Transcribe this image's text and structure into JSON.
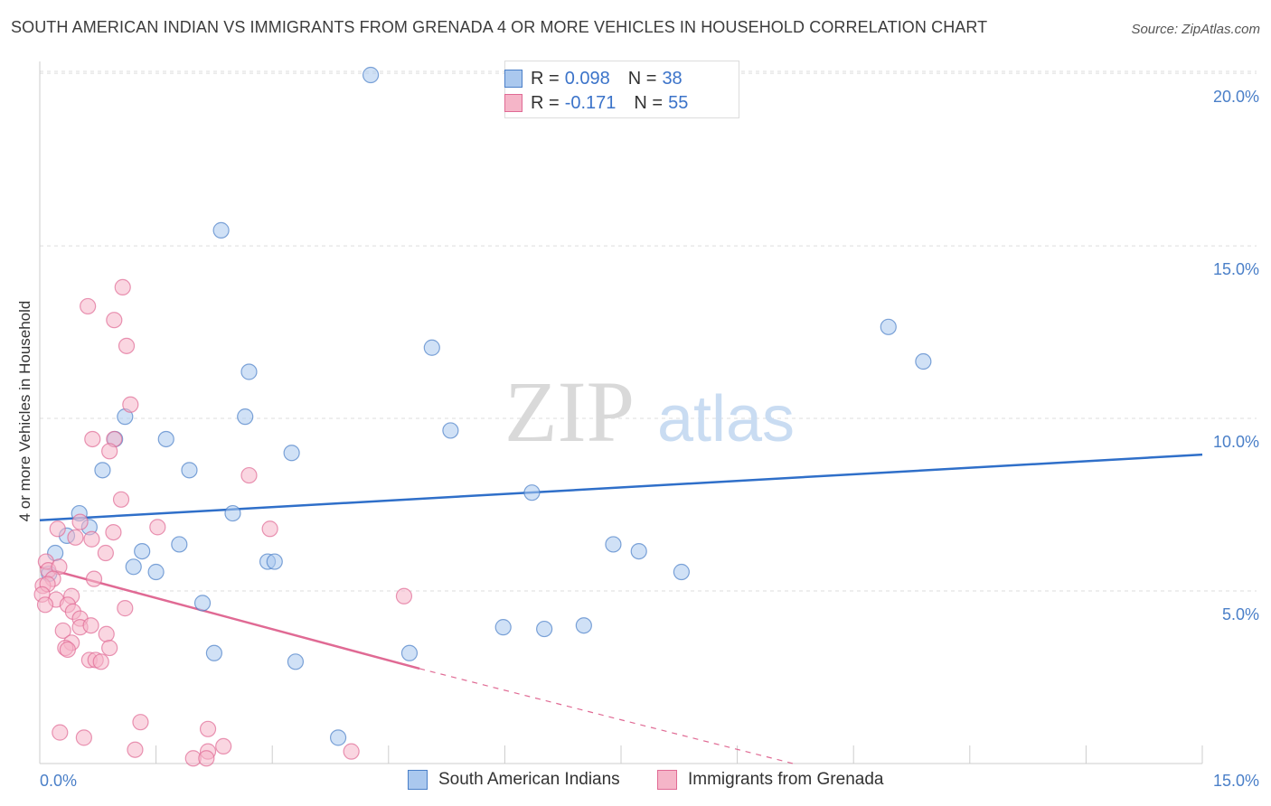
{
  "title": "SOUTH AMERICAN INDIAN VS IMMIGRANTS FROM GRENADA 4 OR MORE VEHICLES IN HOUSEHOLD CORRELATION CHART",
  "source": "Source: ZipAtlas.com",
  "watermark": {
    "zip": "ZIP",
    "atlas": "atlas"
  },
  "legend": {
    "rows": [
      {
        "r_label": "R =",
        "r_value": "0.098",
        "n_label": "N =",
        "n_value": "38"
      },
      {
        "r_label": "R =",
        "r_value": "-0.171",
        "n_label": "N =",
        "n_value": "55"
      }
    ]
  },
  "bottom_legend": [
    "South American Indians",
    "Immigrants from Grenada"
  ],
  "chart_data": {
    "type": "scatter",
    "title": "SOUTH AMERICAN INDIAN VS IMMIGRANTS FROM GRENADA 4 OR MORE VEHICLES IN HOUSEHOLD CORRELATION CHART",
    "xlabel": "",
    "ylabel": "4 or more Vehicles in Household",
    "xlim": [
      0,
      15
    ],
    "ylim": [
      0,
      20.5
    ],
    "x_tick_labels": [
      "0.0%",
      "15.0%"
    ],
    "y_ticks": [
      5,
      10,
      15,
      20
    ],
    "y_tick_labels": [
      "5.0%",
      "10.0%",
      "15.0%",
      "20.0%"
    ],
    "colors": {
      "blue": "#4a7fc8",
      "blue_fill": "#aac8ee",
      "pink": "#e06a94",
      "pink_fill": "#f5b5c8",
      "axis_text": "#4a7fc8"
    },
    "series": [
      {
        "name": "South American Indians",
        "color": "#aac8ee",
        "stroke": "#4a7fc8",
        "points": [
          [
            4.27,
            19.95
          ],
          [
            2.34,
            15.45
          ],
          [
            2.7,
            11.35
          ],
          [
            5.06,
            12.05
          ],
          [
            10.95,
            12.65
          ],
          [
            11.4,
            11.65
          ],
          [
            2.65,
            10.05
          ],
          [
            1.1,
            10.05
          ],
          [
            5.3,
            9.65
          ],
          [
            3.25,
            9.0
          ],
          [
            1.63,
            9.4
          ],
          [
            0.97,
            9.4
          ],
          [
            0.81,
            8.5
          ],
          [
            1.93,
            8.5
          ],
          [
            6.35,
            7.85
          ],
          [
            2.49,
            7.25
          ],
          [
            0.51,
            7.25
          ],
          [
            0.64,
            6.85
          ],
          [
            0.35,
            6.6
          ],
          [
            1.8,
            6.35
          ],
          [
            0.2,
            6.1
          ],
          [
            1.32,
            6.15
          ],
          [
            7.4,
            6.35
          ],
          [
            7.73,
            6.15
          ],
          [
            2.94,
            5.85
          ],
          [
            3.03,
            5.85
          ],
          [
            1.21,
            5.7
          ],
          [
            1.5,
            5.55
          ],
          [
            8.28,
            5.55
          ],
          [
            0.12,
            5.5
          ],
          [
            2.1,
            4.65
          ],
          [
            5.98,
            3.95
          ],
          [
            6.51,
            3.9
          ],
          [
            7.02,
            4.0
          ],
          [
            2.25,
            3.2
          ],
          [
            4.77,
            3.2
          ],
          [
            3.3,
            2.95
          ],
          [
            3.85,
            0.75
          ]
        ],
        "trend": {
          "x": [
            0,
            15
          ],
          "y": [
            7.05,
            8.95
          ]
        }
      },
      {
        "name": "Immigrants from Grenada",
        "color": "#f5b5c8",
        "stroke": "#e06a94",
        "points": [
          [
            1.07,
            13.8
          ],
          [
            0.62,
            13.25
          ],
          [
            0.96,
            12.85
          ],
          [
            1.12,
            12.1
          ],
          [
            1.17,
            10.4
          ],
          [
            0.68,
            9.4
          ],
          [
            0.96,
            9.4
          ],
          [
            0.9,
            9.05
          ],
          [
            2.7,
            8.35
          ],
          [
            1.05,
            7.65
          ],
          [
            0.52,
            7.0
          ],
          [
            0.23,
            6.8
          ],
          [
            1.52,
            6.85
          ],
          [
            2.97,
            6.8
          ],
          [
            0.95,
            6.7
          ],
          [
            0.46,
            6.55
          ],
          [
            0.67,
            6.5
          ],
          [
            0.85,
            6.1
          ],
          [
            0.08,
            5.85
          ],
          [
            0.11,
            5.6
          ],
          [
            0.25,
            5.7
          ],
          [
            0.17,
            5.35
          ],
          [
            0.7,
            5.35
          ],
          [
            0.04,
            5.15
          ],
          [
            0.1,
            5.2
          ],
          [
            0.41,
            4.85
          ],
          [
            0.21,
            4.75
          ],
          [
            0.36,
            4.6
          ],
          [
            0.03,
            4.9
          ],
          [
            0.07,
            4.6
          ],
          [
            1.1,
            4.5
          ],
          [
            0.43,
            4.4
          ],
          [
            4.7,
            4.85
          ],
          [
            0.52,
            4.2
          ],
          [
            0.3,
            3.85
          ],
          [
            0.52,
            3.95
          ],
          [
            0.66,
            4.0
          ],
          [
            0.86,
            3.75
          ],
          [
            0.41,
            3.5
          ],
          [
            0.33,
            3.35
          ],
          [
            0.36,
            3.3
          ],
          [
            0.9,
            3.35
          ],
          [
            0.64,
            3.0
          ],
          [
            0.72,
            3.0
          ],
          [
            0.79,
            2.95
          ],
          [
            1.3,
            1.2
          ],
          [
            0.26,
            0.9
          ],
          [
            2.17,
            1.0
          ],
          [
            0.57,
            0.75
          ],
          [
            1.23,
            0.4
          ],
          [
            2.17,
            0.35
          ],
          [
            2.37,
            0.5
          ],
          [
            1.98,
            0.15
          ],
          [
            2.15,
            0.15
          ],
          [
            4.02,
            0.35
          ]
        ],
        "trend": {
          "x": [
            0,
            4.9
          ],
          "y": [
            5.7,
            2.75
          ]
        },
        "trend_extension": {
          "x": [
            4.9,
            9.72
          ],
          "y": [
            2.75,
            0
          ]
        }
      }
    ]
  }
}
